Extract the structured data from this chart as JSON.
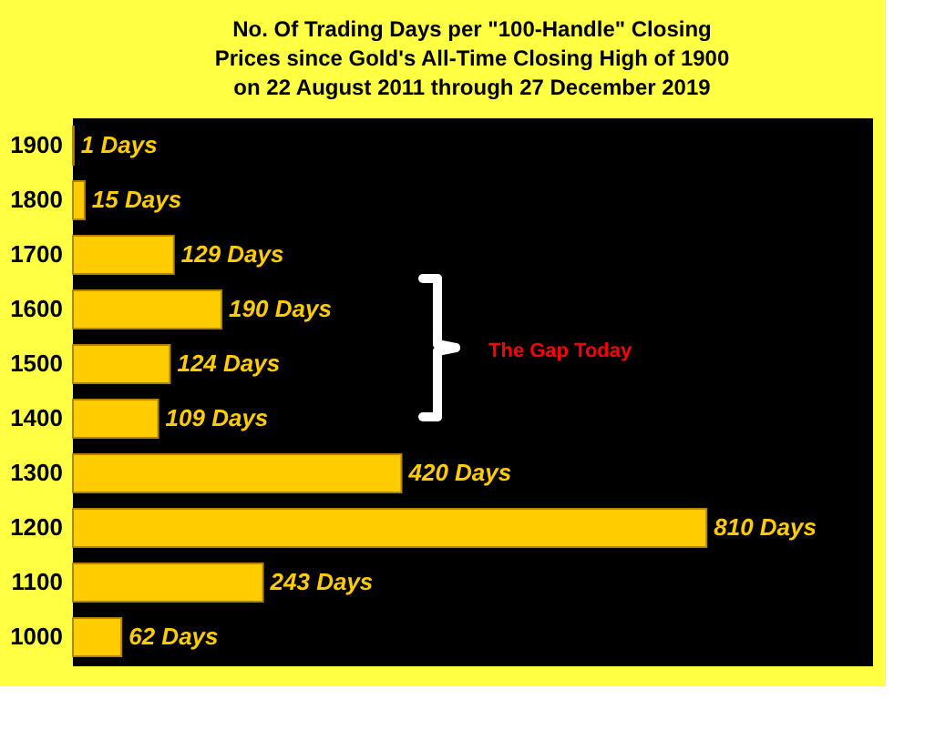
{
  "chart_data": {
    "type": "bar",
    "orientation": "horizontal",
    "title": "No. Of Trading Days per \"100-Handle\" Closing\nPrices  since Gold's All-Time Closing High of 1900\non 22 August 2011 through 27 December 2019",
    "categories": [
      "1900",
      "1800",
      "1700",
      "1600",
      "1500",
      "1400",
      "1300",
      "1200",
      "1100",
      "1000"
    ],
    "values": [
      1,
      15,
      129,
      190,
      124,
      109,
      420,
      810,
      243,
      62
    ],
    "value_labels": [
      "1 Days",
      "15 Days",
      "129 Days",
      "190 Days",
      "124 Days",
      "109 Days",
      "420 Days",
      "810 Days",
      "243 Days",
      "62 Days"
    ],
    "color": "#ffcc00",
    "annotations": [
      "The Gap Today"
    ]
  }
}
